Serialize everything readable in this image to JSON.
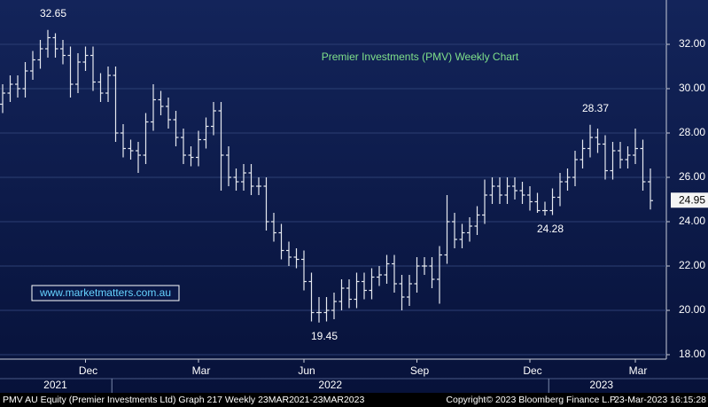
{
  "chart_data": {
    "type": "ohlc",
    "title": "Premier Investments (PMV) Weekly Chart",
    "watermark": "www.marketmatters.com.au",
    "footer": [
      "PMV AU Equity (Premier Investments Ltd) Graph 217  Weekly 23MAR2021-23MAR2023",
      "Copyright© 2023 Bloomberg Finance L.P.",
      "23-Mar-2023 16:15:28"
    ],
    "categories": [
      null,
      null,
      null,
      null,
      null,
      null,
      null,
      null,
      null,
      null,
      null,
      "Dec",
      null,
      null,
      null,
      null,
      null,
      null,
      null,
      null,
      null,
      null,
      null,
      null,
      null,
      null,
      "Mar",
      null,
      null,
      null,
      null,
      null,
      null,
      null,
      null,
      null,
      null,
      null,
      null,
      null,
      "Jun",
      null,
      null,
      null,
      null,
      null,
      null,
      null,
      null,
      null,
      null,
      null,
      null,
      null,
      null,
      "Sep",
      null,
      null,
      null,
      null,
      null,
      null,
      null,
      null,
      null,
      null,
      null,
      null,
      null,
      null,
      "Dec",
      null,
      null,
      null,
      null,
      null,
      null,
      null,
      null,
      null,
      null,
      null,
      null,
      null,
      "Mar",
      null,
      null
    ],
    "x_groups": [
      {
        "label": "2021",
        "from": 0,
        "to": 14
      },
      {
        "label": "2022",
        "from": 15,
        "to": 72
      },
      {
        "label": "2023",
        "from": 73,
        "to": 86
      }
    ],
    "series": [
      {
        "color": "#e6e9f0",
        "open": [
          29.3,
          29.8,
          30.2,
          30.0,
          30.8,
          31.3,
          31.8,
          32.3,
          31.8,
          31.5,
          30.2,
          31.2,
          31.5,
          30.3,
          29.8,
          30.6,
          28.0,
          27.3,
          27.2,
          27.0,
          28.5,
          29.5,
          29.2,
          28.6,
          27.8,
          27.0,
          26.9,
          27.7,
          28.3,
          29.0,
          27.0,
          26.0,
          25.8,
          26.2,
          25.6,
          25.6,
          24.0,
          23.5,
          22.7,
          22.4,
          22.3,
          21.3,
          19.9,
          19.9,
          20.0,
          20.4,
          21.0,
          20.5,
          21.3,
          20.9,
          21.5,
          21.6,
          22.1,
          21.2,
          20.6,
          21.2,
          22.0,
          22.0,
          21.4,
          22.5,
          24.0,
          23.2,
          23.5,
          23.8,
          24.3,
          25.2,
          25.6,
          25.2,
          25.6,
          25.4,
          25.2,
          24.9,
          24.5,
          24.5,
          25.1,
          25.8,
          26.0,
          26.8,
          27.3,
          27.8,
          27.5,
          26.3,
          27.2,
          26.8,
          27.0,
          27.3,
          25.8
        ],
        "high": [
          30.2,
          30.6,
          30.6,
          31.2,
          31.7,
          32.2,
          32.65,
          32.5,
          32.2,
          31.9,
          31.6,
          31.9,
          31.9,
          30.7,
          31.0,
          31.0,
          28.4,
          27.7,
          27.6,
          28.9,
          30.2,
          29.9,
          29.6,
          29.0,
          28.2,
          27.4,
          28.1,
          28.7,
          29.4,
          29.4,
          27.4,
          26.4,
          26.6,
          26.6,
          26.0,
          26.0,
          24.4,
          23.9,
          23.1,
          22.8,
          22.7,
          21.7,
          20.6,
          20.6,
          20.8,
          21.4,
          21.4,
          21.7,
          21.7,
          21.9,
          22.0,
          22.5,
          22.5,
          21.6,
          21.6,
          22.4,
          22.4,
          22.4,
          22.9,
          25.2,
          24.4,
          23.9,
          24.2,
          24.7,
          25.9,
          26.0,
          26.0,
          26.0,
          26.0,
          25.8,
          25.6,
          25.3,
          24.9,
          25.5,
          26.2,
          26.4,
          27.2,
          27.7,
          28.37,
          28.2,
          27.9,
          27.6,
          27.6,
          27.4,
          28.2,
          27.7,
          26.4
        ],
        "low": [
          28.9,
          29.4,
          29.6,
          29.6,
          30.4,
          30.9,
          31.4,
          31.4,
          31.1,
          29.6,
          29.8,
          30.8,
          29.9,
          29.4,
          29.4,
          27.6,
          26.9,
          26.8,
          26.2,
          26.6,
          28.1,
          28.8,
          28.2,
          27.4,
          26.6,
          26.5,
          26.5,
          27.3,
          27.9,
          25.4,
          25.6,
          25.4,
          25.4,
          25.2,
          25.2,
          23.6,
          23.1,
          22.3,
          22.0,
          21.9,
          20.9,
          19.5,
          19.45,
          19.5,
          19.6,
          20.0,
          20.1,
          20.1,
          20.5,
          20.5,
          21.1,
          21.2,
          20.8,
          20.0,
          20.2,
          20.8,
          21.6,
          21.0,
          20.3,
          22.1,
          22.8,
          22.8,
          23.1,
          23.4,
          23.9,
          24.8,
          24.8,
          24.8,
          25.0,
          24.8,
          24.5,
          24.4,
          24.28,
          24.3,
          24.7,
          25.4,
          25.6,
          26.4,
          26.9,
          27.1,
          25.9,
          25.9,
          26.4,
          26.4,
          26.6,
          25.4,
          24.55
        ],
        "close": [
          29.8,
          30.2,
          30.0,
          30.8,
          31.3,
          31.8,
          32.3,
          31.8,
          31.5,
          30.2,
          31.2,
          31.5,
          30.3,
          29.8,
          30.6,
          28.0,
          27.3,
          27.2,
          27.0,
          28.5,
          29.5,
          29.2,
          28.6,
          27.8,
          27.0,
          26.9,
          27.7,
          28.3,
          29.0,
          27.0,
          26.0,
          25.8,
          26.2,
          25.6,
          25.6,
          24.0,
          23.5,
          22.7,
          22.4,
          22.3,
          21.3,
          19.9,
          19.9,
          20.0,
          20.4,
          21.0,
          20.5,
          21.3,
          20.9,
          21.5,
          21.6,
          22.1,
          21.2,
          20.6,
          21.2,
          22.0,
          22.0,
          21.4,
          22.5,
          24.0,
          23.2,
          23.5,
          23.8,
          24.3,
          25.2,
          25.6,
          25.2,
          25.6,
          25.4,
          25.2,
          24.9,
          24.5,
          24.5,
          25.1,
          25.8,
          26.0,
          26.8,
          27.3,
          27.8,
          27.5,
          26.3,
          27.2,
          26.8,
          27.0,
          27.3,
          25.8,
          24.95
        ]
      }
    ],
    "annotations": [
      {
        "label": "32.65",
        "value": 32.65
      },
      {
        "label": "19.45",
        "value": 19.45
      },
      {
        "label": "28.37",
        "value": 28.37
      },
      {
        "label": "24.28",
        "value": 24.28
      }
    ],
    "ylim": [
      17.8,
      34.0
    ],
    "yticks": [
      {
        "value": 18,
        "label": "18.00"
      },
      {
        "value": 20,
        "label": "20.00"
      },
      {
        "value": 22,
        "label": "22.00"
      },
      {
        "value": 24,
        "label": "24.00"
      },
      {
        "value": 26,
        "label": "26.00"
      },
      {
        "value": 28,
        "label": "28.00"
      },
      {
        "value": 30,
        "label": "30.00"
      },
      {
        "value": 32,
        "label": "32.00"
      }
    ],
    "grid": true
  }
}
